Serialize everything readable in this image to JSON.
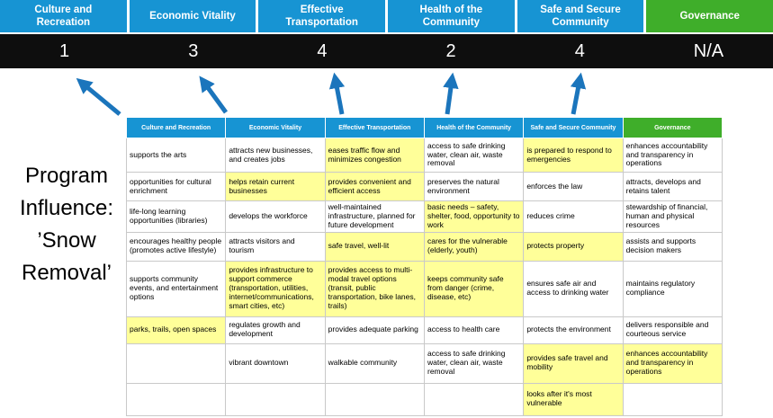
{
  "colors": {
    "blue": "#1794D3",
    "green": "#3FAE2A",
    "scoreBg": "#0e0e0e",
    "scoreText": "#FFFFFF",
    "arrow": "#1B75BC",
    "highlight": "#FFFF99",
    "border": "#C9C9C9"
  },
  "scoreboard": {
    "columns": [
      {
        "label": "Culture and Recreation",
        "score": "1"
      },
      {
        "label": "Economic Vitality",
        "score": "3"
      },
      {
        "label": "Effective Transportation",
        "score": "4"
      },
      {
        "label": "Health of the Community",
        "score": "2"
      },
      {
        "label": "Safe and Secure Community",
        "score": "4"
      },
      {
        "label": "Governance",
        "score": "N/A"
      }
    ]
  },
  "title": {
    "lines": [
      "Program",
      "Influence:",
      "’Snow",
      "Removal’"
    ]
  },
  "matrix": {
    "headers": [
      "Culture and Recreation",
      "Economic Vitality",
      "Effective Transportation",
      "Health of the Community",
      "Safe and Secure Community",
      "Governance"
    ],
    "rows": [
      [
        {
          "text": "supports the arts",
          "highlight": false
        },
        {
          "text": "attracts new businesses, and creates jobs",
          "highlight": false
        },
        {
          "text": "eases traffic flow and minimizes congestion",
          "highlight": true
        },
        {
          "text": "access to safe drinking water, clean air, waste removal",
          "highlight": false
        },
        {
          "text": "is prepared to respond to emergencies",
          "highlight": true
        },
        {
          "text": "enhances accountability and transparency in operations",
          "highlight": false
        }
      ],
      [
        {
          "text": "opportunities for cultural enrichment",
          "highlight": false
        },
        {
          "text": "helps retain current businesses",
          "highlight": true
        },
        {
          "text": "provides convenient and efficient access",
          "highlight": true
        },
        {
          "text": "preserves the natural environment",
          "highlight": false
        },
        {
          "text": "enforces the law",
          "highlight": false
        },
        {
          "text": "attracts, develops and retains talent",
          "highlight": false
        }
      ],
      [
        {
          "text": "life-long learning opportunities (libraries)",
          "highlight": false
        },
        {
          "text": "develops the workforce",
          "highlight": false
        },
        {
          "text": "well-maintained infrastructure, planned for future development",
          "highlight": false
        },
        {
          "text": "basic needs – safety, shelter, food, opportunity to work",
          "highlight": true
        },
        {
          "text": "reduces crime",
          "highlight": false
        },
        {
          "text": "stewardship of financial, human and physical resources",
          "highlight": false
        }
      ],
      [
        {
          "text": "encourages healthy people (promotes active lifestyle)",
          "highlight": false
        },
        {
          "text": "attracts visitors and tourism",
          "highlight": false
        },
        {
          "text": "safe travel, well-lit",
          "highlight": true
        },
        {
          "text": "cares for the vulnerable (elderly, youth)",
          "highlight": true
        },
        {
          "text": "protects property",
          "highlight": true
        },
        {
          "text": "assists and supports decision makers",
          "highlight": false
        }
      ],
      [
        {
          "text": "supports community events, and entertainment options",
          "highlight": false
        },
        {
          "text": "provides infrastructure to support commerce (transportation, utilities, internet/communications, smart cities, etc)",
          "highlight": true
        },
        {
          "text": "provides access to multi-modal travel options (transit, public transportation, bike lanes, trails)",
          "highlight": true
        },
        {
          "text": "keeps community safe from danger (crime, disease, etc)",
          "highlight": true
        },
        {
          "text": "ensures safe air and access to drinking water",
          "highlight": false
        },
        {
          "text": "maintains regulatory compliance",
          "highlight": false
        }
      ],
      [
        {
          "text": "parks, trails, open spaces",
          "highlight": true
        },
        {
          "text": "regulates growth and development",
          "highlight": false
        },
        {
          "text": "provides adequate parking",
          "highlight": false
        },
        {
          "text": "access to health care",
          "highlight": false
        },
        {
          "text": "protects the environment",
          "highlight": false
        },
        {
          "text": "delivers responsible and courteous service",
          "highlight": false
        }
      ],
      [
        {
          "text": "",
          "highlight": false
        },
        {
          "text": "vibrant downtown",
          "highlight": false
        },
        {
          "text": "walkable community",
          "highlight": false
        },
        {
          "text": "access to safe drinking water, clean air, waste removal",
          "highlight": false
        },
        {
          "text": "provides safe travel and mobility",
          "highlight": true
        },
        {
          "text": "enhances accountability and transparency in operations",
          "highlight": true
        }
      ],
      [
        {
          "text": "",
          "highlight": false
        },
        {
          "text": "",
          "highlight": false
        },
        {
          "text": "",
          "highlight": false
        },
        {
          "text": "",
          "highlight": false
        },
        {
          "text": "looks after it's most vulnerable",
          "highlight": true
        },
        {
          "text": "",
          "highlight": false
        }
      ]
    ]
  }
}
